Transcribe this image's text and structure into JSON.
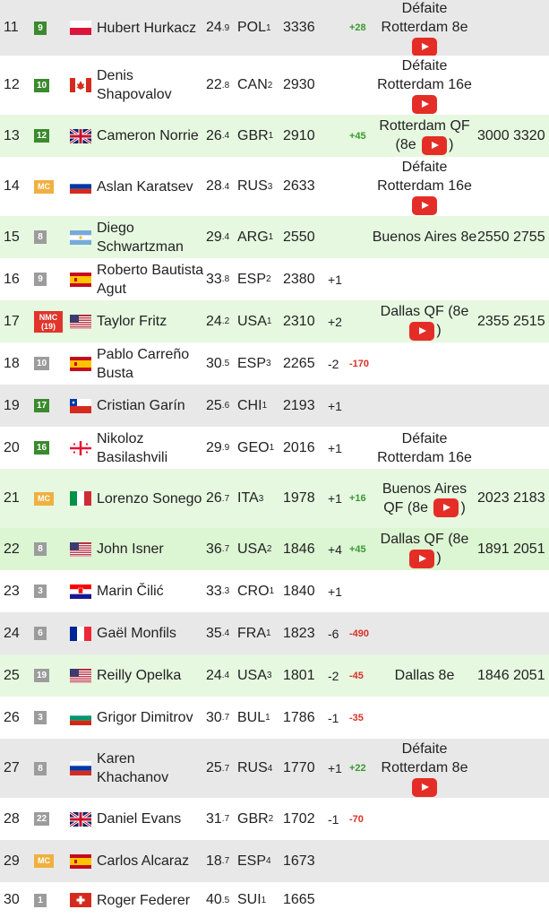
{
  "colors": {
    "badge_green": "#3b8a2e",
    "badge_gray": "#9c9c9c",
    "badge_mc": "#f0b040",
    "badge_nmc": "#e0352a",
    "positive": "#3a9a30",
    "negative": "#d93025",
    "row_green": "#e6f8e0",
    "row_gray": "#e8e8e8",
    "youtube": "#e52d27"
  },
  "rows": [
    {
      "rank": "11",
      "badge": "9",
      "badge_type": "green",
      "flag": "POL",
      "name": "Hubert Hurkacz",
      "age": "24",
      "age_dec": ".9",
      "country": "POL",
      "country_rank": "1",
      "points": "3336",
      "change": "",
      "delta": "+28",
      "event": "Défaite Rotterdam 8e",
      "video": true,
      "event_suffix": "",
      "p1": "",
      "p2": "",
      "bg": "gray"
    },
    {
      "rank": "12",
      "badge": "10",
      "badge_type": "green",
      "flag": "CAN",
      "name": "Denis Shapovalov",
      "age": "22",
      "age_dec": ".8",
      "country": "CAN",
      "country_rank": "2",
      "points": "2930",
      "change": "",
      "delta": "",
      "event": "Défaite Rotterdam 16e",
      "video": true,
      "event_suffix": "",
      "p1": "",
      "p2": "",
      "bg": "white"
    },
    {
      "rank": "13",
      "badge": "12",
      "badge_type": "green",
      "flag": "GBR",
      "name": "Cameron Norrie",
      "age": "26",
      "age_dec": ".4",
      "country": "GBR",
      "country_rank": "1",
      "points": "2910",
      "change": "",
      "delta": "+45",
      "event": "Rotterdam QF (8e",
      "video": true,
      "event_suffix": ")",
      "p1": "3000",
      "p2": "3320",
      "bg": "green"
    },
    {
      "rank": "14",
      "badge": "MC",
      "badge_type": "mc",
      "flag": "RUS",
      "name": "Aslan Karatsev",
      "age": "28",
      "age_dec": ".4",
      "country": "RUS",
      "country_rank": "3",
      "points": "2633",
      "change": "",
      "delta": "",
      "event": "Défaite Rotterdam 16e",
      "video": true,
      "event_suffix": "",
      "p1": "",
      "p2": "",
      "bg": "white"
    },
    {
      "rank": "15",
      "badge": "8",
      "badge_type": "gray",
      "flag": "ARG",
      "name": "Diego Schwartzman",
      "age": "29",
      "age_dec": ".4",
      "country": "ARG",
      "country_rank": "1",
      "points": "2550",
      "change": "",
      "delta": "",
      "event": "Buenos Aires 8e",
      "video": false,
      "event_suffix": "",
      "p1": "2550",
      "p2": "2755",
      "bg": "green"
    },
    {
      "rank": "16",
      "badge": "9",
      "badge_type": "gray",
      "flag": "ESP",
      "name": "Roberto Bautista Agut",
      "age": "33",
      "age_dec": ".8",
      "country": "ESP",
      "country_rank": "2",
      "points": "2380",
      "change": "+1",
      "delta": "",
      "event": "",
      "video": false,
      "event_suffix": "",
      "p1": "",
      "p2": "",
      "bg": "white"
    },
    {
      "rank": "17",
      "badge": "NMC (19)",
      "badge_type": "nmc",
      "flag": "USA",
      "name": "Taylor Fritz",
      "age": "24",
      "age_dec": ".2",
      "country": "USA",
      "country_rank": "1",
      "points": "2310",
      "change": "+2",
      "delta": "",
      "event": "Dallas QF (8e",
      "video": true,
      "event_suffix": ")",
      "p1": "2355",
      "p2": "2515",
      "bg": "green"
    },
    {
      "rank": "18",
      "badge": "10",
      "badge_type": "gray",
      "flag": "ESP",
      "name": "Pablo Carreño Busta",
      "age": "30",
      "age_dec": ".5",
      "country": "ESP",
      "country_rank": "3",
      "points": "2265",
      "change": "-2",
      "delta": "-170",
      "event": "",
      "video": false,
      "event_suffix": "",
      "p1": "",
      "p2": "",
      "bg": "white"
    },
    {
      "rank": "19",
      "badge": "17",
      "badge_type": "green",
      "flag": "CHI",
      "name": "Cristian Garín",
      "age": "25",
      "age_dec": ".6",
      "country": "CHI",
      "country_rank": "1",
      "points": "2193",
      "change": "+1",
      "delta": "",
      "event": "",
      "video": false,
      "event_suffix": "",
      "p1": "",
      "p2": "",
      "bg": "gray"
    },
    {
      "rank": "20",
      "badge": "16",
      "badge_type": "green",
      "flag": "GEO",
      "name": "Nikoloz Basilashvili",
      "age": "29",
      "age_dec": ".9",
      "country": "GEO",
      "country_rank": "1",
      "points": "2016",
      "change": "+1",
      "delta": "",
      "event": "Défaite Rotterdam 16e",
      "video": false,
      "event_suffix": "",
      "p1": "",
      "p2": "",
      "bg": "white"
    },
    {
      "rank": "21",
      "badge": "MC",
      "badge_type": "mc",
      "flag": "ITA",
      "name": "Lorenzo Sonego",
      "age": "26",
      "age_dec": ".7",
      "country": "ITA",
      "country_rank": "3",
      "points": "1978",
      "change": "+1",
      "delta": "+16",
      "event": "Buenos Aires QF (8e",
      "video": true,
      "event_suffix": ")",
      "p1": "2023",
      "p2": "2183",
      "bg": "green"
    },
    {
      "rank": "22",
      "badge": "8",
      "badge_type": "gray",
      "flag": "USA",
      "name": "John Isner",
      "age": "36",
      "age_dec": ".7",
      "country": "USA",
      "country_rank": "2",
      "points": "1846",
      "change": "+4",
      "delta": "+45",
      "event": "Dallas QF (8e",
      "video": true,
      "event_suffix": ")",
      "p1": "1891",
      "p2": "2051",
      "bg": "green2"
    },
    {
      "rank": "23",
      "badge": "3",
      "badge_type": "gray",
      "flag": "CRO",
      "name": "Marin Čilić",
      "age": "33",
      "age_dec": ".3",
      "country": "CRO",
      "country_rank": "1",
      "points": "1840",
      "change": "+1",
      "delta": "",
      "event": "",
      "video": false,
      "event_suffix": "",
      "p1": "",
      "p2": "",
      "bg": "white"
    },
    {
      "rank": "24",
      "badge": "6",
      "badge_type": "gray",
      "flag": "FRA",
      "name": "Gaël Monfils",
      "age": "35",
      "age_dec": ".4",
      "country": "FRA",
      "country_rank": "1",
      "points": "1823",
      "change": "-6",
      "delta": "-490",
      "event": "",
      "video": false,
      "event_suffix": "",
      "p1": "",
      "p2": "",
      "bg": "gray"
    },
    {
      "rank": "25",
      "badge": "19",
      "badge_type": "gray",
      "flag": "USA",
      "name": "Reilly Opelka",
      "age": "24",
      "age_dec": ".4",
      "country": "USA",
      "country_rank": "3",
      "points": "1801",
      "change": "-2",
      "delta": "-45",
      "event": "Dallas 8e",
      "video": false,
      "event_suffix": "",
      "p1": "1846",
      "p2": "2051",
      "bg": "green"
    },
    {
      "rank": "26",
      "badge": "3",
      "badge_type": "gray",
      "flag": "BUL",
      "name": "Grigor Dimitrov",
      "age": "30",
      "age_dec": ".7",
      "country": "BUL",
      "country_rank": "1",
      "points": "1786",
      "change": "-1",
      "delta": "-35",
      "event": "",
      "video": false,
      "event_suffix": "",
      "p1": "",
      "p2": "",
      "bg": "white"
    },
    {
      "rank": "27",
      "badge": "8",
      "badge_type": "gray",
      "flag": "RUS",
      "name": "Karen Khachanov",
      "age": "25",
      "age_dec": ".7",
      "country": "RUS",
      "country_rank": "4",
      "points": "1770",
      "change": "+1",
      "delta": "+22",
      "event": "Défaite Rotterdam 8e",
      "video": true,
      "event_suffix": "",
      "p1": "",
      "p2": "",
      "bg": "gray"
    },
    {
      "rank": "28",
      "badge": "22",
      "badge_type": "gray",
      "flag": "GBR",
      "name": "Daniel Evans",
      "age": "31",
      "age_dec": ".7",
      "country": "GBR",
      "country_rank": "2",
      "points": "1702",
      "change": "-1",
      "delta": "-70",
      "event": "",
      "video": false,
      "event_suffix": "",
      "p1": "",
      "p2": "",
      "bg": "white"
    },
    {
      "rank": "29",
      "badge": "MC",
      "badge_type": "mc",
      "flag": "ESP",
      "name": "Carlos Alcaraz",
      "age": "18",
      "age_dec": ".7",
      "country": "ESP",
      "country_rank": "4",
      "points": "1673",
      "change": "",
      "delta": "",
      "event": "",
      "video": false,
      "event_suffix": "",
      "p1": "",
      "p2": "",
      "bg": "gray"
    },
    {
      "rank": "30",
      "badge": "1",
      "badge_type": "gray",
      "flag": "SUI",
      "name": "Roger Federer",
      "age": "40",
      "age_dec": ".5",
      "country": "SUI",
      "country_rank": "1",
      "points": "1665",
      "change": "",
      "delta": "",
      "event": "",
      "video": false,
      "event_suffix": "",
      "p1": "",
      "p2": "",
      "bg": "white"
    }
  ]
}
